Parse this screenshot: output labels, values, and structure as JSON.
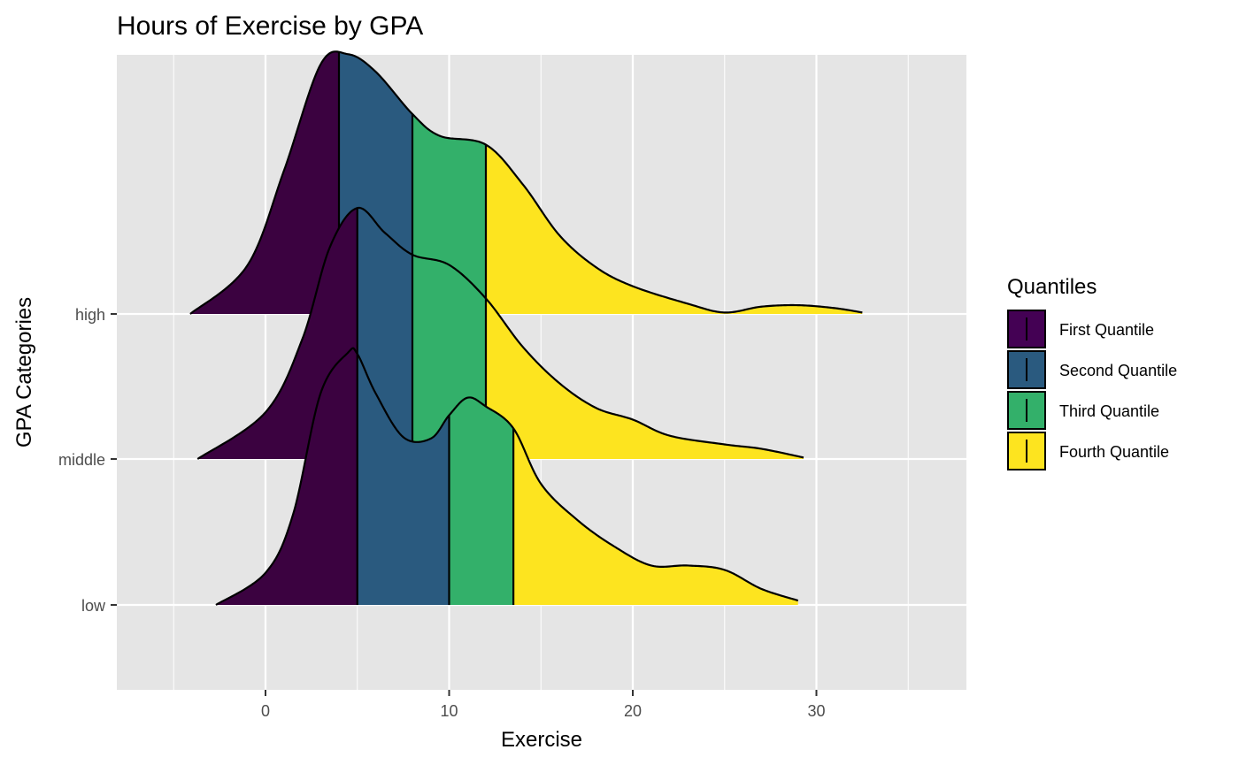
{
  "chart_data": {
    "type": "ridgeline",
    "title": "Hours of Exercise by GPA",
    "xlabel": "Exercise",
    "ylabel": "GPA Categories",
    "xlim": [
      -8.2,
      38.2
    ],
    "x_ticks": [
      0,
      10,
      20,
      30
    ],
    "x_minor_ticks": [
      -5,
      5,
      15,
      25,
      35
    ],
    "categories": [
      "low",
      "middle",
      "high"
    ],
    "grid": true,
    "legend": {
      "title": "Quantiles",
      "position": "right",
      "items": [
        {
          "label": "First Quantile",
          "color": "#440154"
        },
        {
          "label": "Second Quantile",
          "color": "#2a5a7f"
        },
        {
          "label": "Third Quantile",
          "color": "#33b06a"
        },
        {
          "label": "Fourth Quantile",
          "color": "#fde41f"
        }
      ]
    },
    "colors": {
      "q1": "#3b0240",
      "q2": "#2a5a7f",
      "q3": "#33b06a",
      "q4": "#fde41f",
      "panel": "#e5e5e5",
      "grid": "#ffffff"
    },
    "series": [
      {
        "name": "low",
        "quantile_cuts": [
          5,
          10,
          13.5
        ],
        "density_height_rel": [
          [
            -2.7,
            0.0
          ],
          [
            0,
            0.22
          ],
          [
            1.5,
            0.62
          ],
          [
            3,
            1.45
          ],
          [
            4.5,
            1.73
          ],
          [
            5,
            1.72
          ],
          [
            6,
            1.45
          ],
          [
            7.5,
            1.15
          ],
          [
            9,
            1.14
          ],
          [
            10,
            1.3
          ],
          [
            11,
            1.42
          ],
          [
            12,
            1.36
          ],
          [
            13.5,
            1.21
          ],
          [
            15,
            0.83
          ],
          [
            17,
            0.58
          ],
          [
            19,
            0.4
          ],
          [
            21,
            0.27
          ],
          [
            23,
            0.27
          ],
          [
            25,
            0.24
          ],
          [
            27,
            0.11
          ],
          [
            29,
            0.03
          ]
        ]
      },
      {
        "name": "middle",
        "quantile_cuts": [
          5,
          8,
          12
        ],
        "density_height_rel": [
          [
            -3.7,
            0.0
          ],
          [
            0,
            0.32
          ],
          [
            2,
            0.82
          ],
          [
            3.5,
            1.45
          ],
          [
            5,
            1.72
          ],
          [
            6.5,
            1.55
          ],
          [
            8,
            1.4
          ],
          [
            10,
            1.33
          ],
          [
            12,
            1.1
          ],
          [
            14,
            0.77
          ],
          [
            16,
            0.52
          ],
          [
            18,
            0.35
          ],
          [
            20,
            0.27
          ],
          [
            22,
            0.16
          ],
          [
            25,
            0.1
          ],
          [
            27,
            0.07
          ],
          [
            29.3,
            0.01
          ]
        ]
      },
      {
        "name": "high",
        "quantile_cuts": [
          4,
          8,
          12
        ],
        "density_height_rel": [
          [
            -4.1,
            0.0
          ],
          [
            -1,
            0.33
          ],
          [
            1,
            0.98
          ],
          [
            3,
            1.71
          ],
          [
            4.5,
            1.78
          ],
          [
            6,
            1.66
          ],
          [
            8,
            1.37
          ],
          [
            9.5,
            1.22
          ],
          [
            12,
            1.16
          ],
          [
            14,
            0.89
          ],
          [
            16,
            0.54
          ],
          [
            18,
            0.32
          ],
          [
            20,
            0.19
          ],
          [
            23,
            0.07
          ],
          [
            25,
            0.01
          ],
          [
            27,
            0.05
          ],
          [
            29,
            0.06
          ],
          [
            31,
            0.04
          ],
          [
            32.5,
            0.01
          ]
        ]
      }
    ]
  }
}
